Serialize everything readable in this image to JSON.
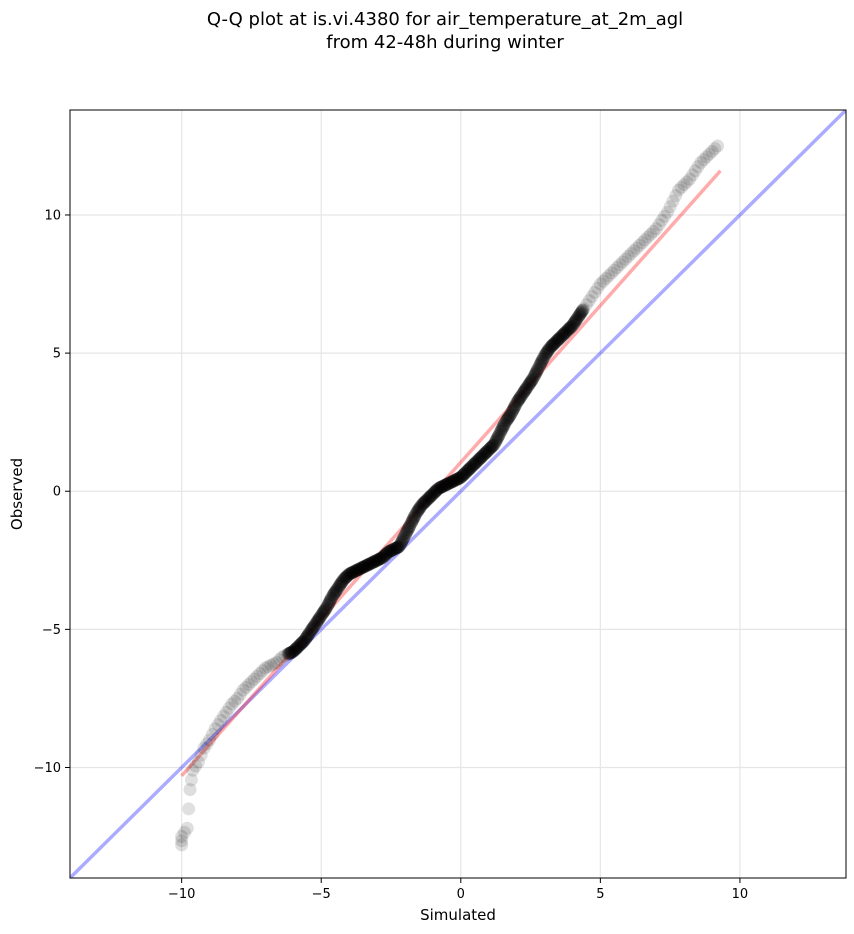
{
  "chart_data": {
    "type": "scatter",
    "title_lines": [
      "Q-Q plot at is.vi.4380 for air_temperature_at_2m_agl",
      "from 42-48h during winter"
    ],
    "xlabel": "Simulated",
    "ylabel": "Observed",
    "xlim": [
      -14,
      13.8
    ],
    "ylim": [
      -14,
      13.8
    ],
    "xticks": [
      -10,
      -5,
      0,
      5,
      10
    ],
    "yticks": [
      -10,
      -5,
      0,
      5,
      10
    ],
    "grid": true,
    "colors": {
      "points": "#000000",
      "identity_line": "#0000ff",
      "fit_line": "#ff0000"
    },
    "identity_line": {
      "x": [
        -14,
        13.8
      ],
      "y": [
        -14,
        13.8
      ]
    },
    "fit_line": {
      "x": [
        -10,
        9.3
      ],
      "y": [
        -10.3,
        11.6
      ]
    },
    "quantiles": {
      "x": [
        -10.0,
        -10.0,
        -9.8,
        -9.7,
        -9.6,
        -9.4,
        -9.2,
        -9.0,
        -8.8,
        -8.6,
        -8.4,
        -8.2,
        -8.0,
        -7.8,
        -7.6,
        -7.4,
        -7.2,
        -7.0,
        -6.8,
        -6.6,
        -6.4,
        -6.2,
        -6.0,
        -5.8,
        -5.6,
        -5.4,
        -5.2,
        -5.0,
        -4.8,
        -4.6,
        -4.4,
        -4.2,
        -4.0,
        -3.8,
        -3.6,
        -3.4,
        -3.2,
        -3.0,
        -2.8,
        -2.6,
        -2.4,
        -2.2,
        -2.0,
        -1.8,
        -1.6,
        -1.4,
        -1.2,
        -1.0,
        -0.8,
        -0.6,
        -0.4,
        -0.2,
        0.0,
        0.2,
        0.4,
        0.6,
        0.8,
        1.0,
        1.2,
        1.4,
        1.6,
        1.8,
        2.0,
        2.2,
        2.4,
        2.6,
        2.8,
        3.0,
        3.2,
        3.4,
        3.6,
        3.8,
        4.0,
        4.2,
        4.4,
        4.6,
        4.8,
        5.0,
        5.2,
        5.4,
        5.6,
        5.8,
        6.0,
        6.2,
        6.4,
        6.6,
        6.8,
        7.0,
        7.2,
        7.4,
        7.6,
        7.8,
        8.0,
        8.2,
        8.4,
        8.6,
        8.8,
        9.0,
        9.2
      ],
      "y": [
        -12.8,
        -12.5,
        -12.2,
        -10.8,
        -10.1,
        -9.8,
        -9.3,
        -9.0,
        -8.6,
        -8.3,
        -8.0,
        -7.7,
        -7.5,
        -7.2,
        -7.0,
        -6.8,
        -6.6,
        -6.4,
        -6.3,
        -6.2,
        -6.0,
        -5.9,
        -5.8,
        -5.6,
        -5.4,
        -5.1,
        -4.8,
        -4.5,
        -4.2,
        -3.8,
        -3.5,
        -3.2,
        -3.0,
        -2.9,
        -2.8,
        -2.7,
        -2.6,
        -2.5,
        -2.4,
        -2.2,
        -2.1,
        -2.0,
        -1.6,
        -1.2,
        -0.8,
        -0.5,
        -0.3,
        -0.1,
        0.1,
        0.2,
        0.3,
        0.4,
        0.5,
        0.7,
        0.9,
        1.1,
        1.3,
        1.5,
        1.7,
        2.1,
        2.5,
        2.8,
        3.2,
        3.5,
        3.8,
        4.1,
        4.5,
        4.9,
        5.2,
        5.4,
        5.6,
        5.8,
        6.0,
        6.3,
        6.6,
        6.9,
        7.2,
        7.5,
        7.7,
        7.9,
        8.1,
        8.3,
        8.5,
        8.7,
        8.9,
        9.1,
        9.3,
        9.5,
        9.8,
        10.1,
        10.5,
        10.9,
        11.1,
        11.3,
        11.6,
        11.9,
        12.1,
        12.3,
        12.5
      ]
    }
  }
}
